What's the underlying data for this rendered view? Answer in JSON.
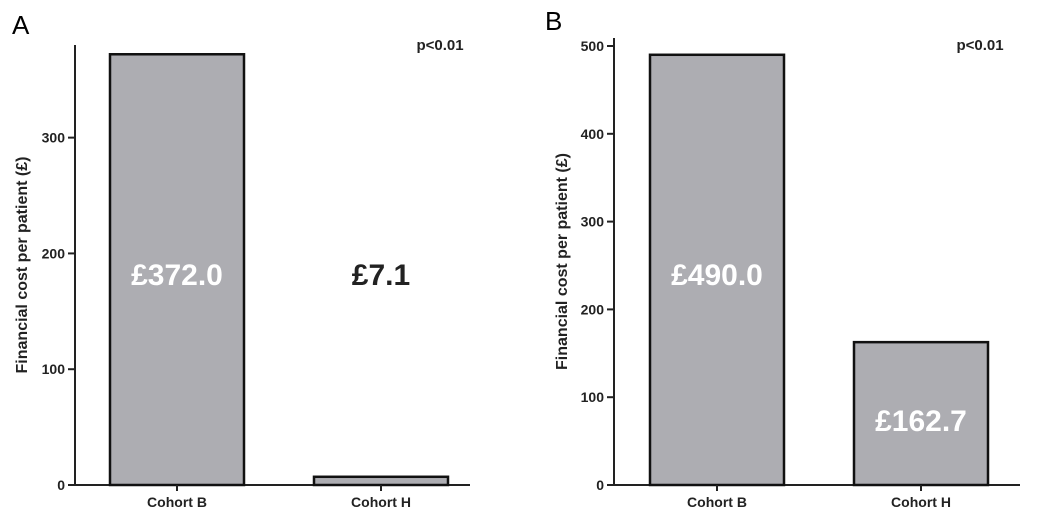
{
  "chart_data": [
    {
      "type": "bar",
      "panel": "A",
      "categories": [
        "Cohort B",
        "Cohort H"
      ],
      "values": [
        372.0,
        7.1
      ],
      "data_labels": [
        "£372.0",
        "£7.1"
      ],
      "ylabel": "Financial cost per patient (£)",
      "xlabel": "",
      "ylim": [
        0,
        380
      ],
      "yticks": [
        0,
        100,
        200,
        300
      ],
      "annotation": "p<0.01",
      "bar_color": "#adadb2"
    },
    {
      "type": "bar",
      "panel": "B",
      "categories": [
        "Cohort B",
        "Cohort H"
      ],
      "values": [
        490.0,
        162.7
      ],
      "data_labels": [
        "£490.0",
        "£162.7"
      ],
      "ylabel": "Financial cost per patient (£)",
      "xlabel": "",
      "ylim": [
        0,
        500
      ],
      "yticks": [
        0,
        100,
        200,
        300,
        400,
        500
      ],
      "annotation": "p<0.01",
      "bar_color": "#adadb2"
    }
  ]
}
